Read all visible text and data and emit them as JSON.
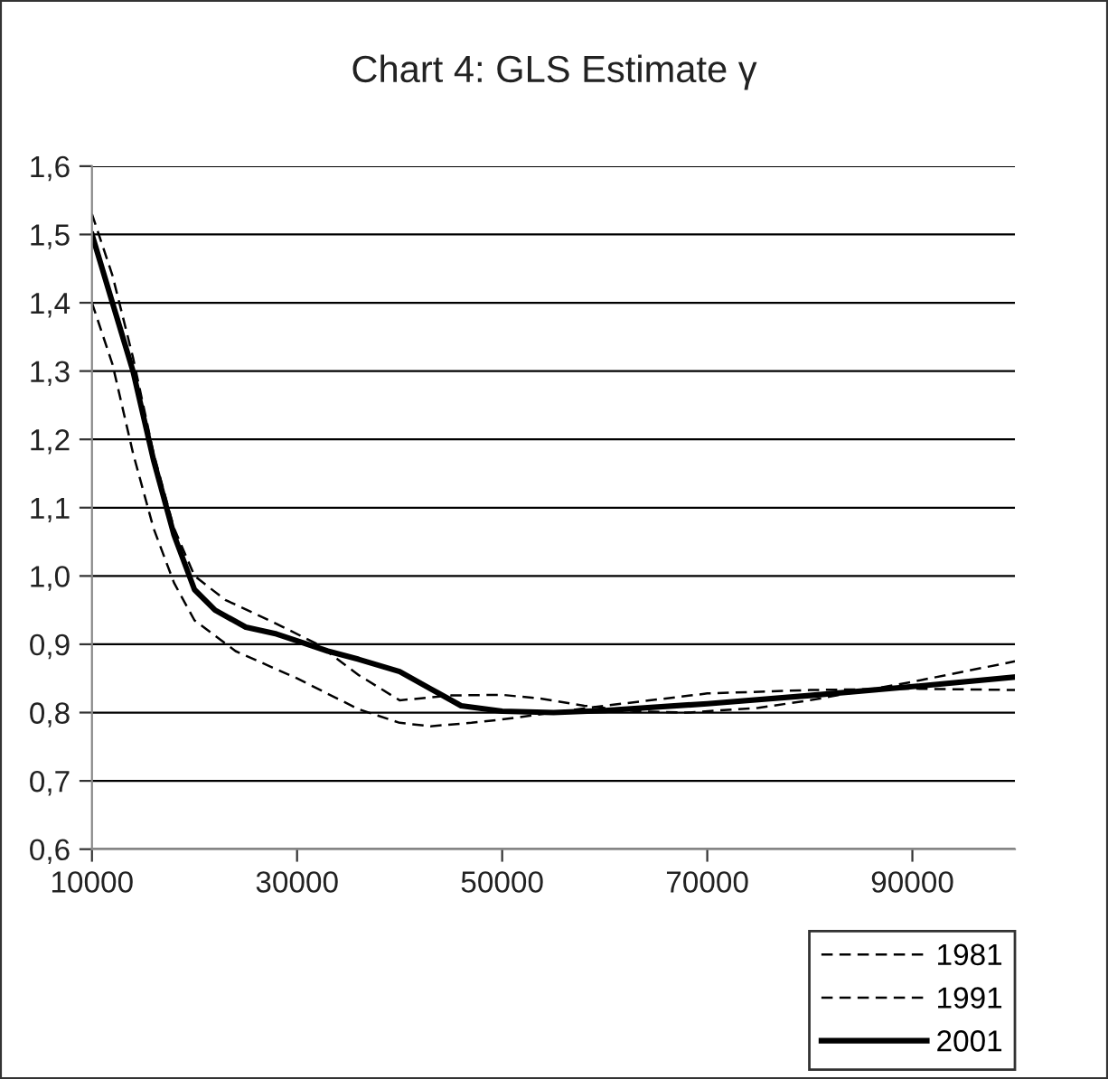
{
  "chart_data": {
    "type": "line",
    "title": "Chart 4: GLS Estimate γ",
    "xlim": [
      10000,
      100000
    ],
    "xticks": [
      10000,
      30000,
      50000,
      70000,
      90000
    ],
    "ylim": [
      0.6,
      1.6
    ],
    "yticks": [
      {
        "value": 0.6,
        "label": "0,6"
      },
      {
        "value": 0.7,
        "label": "0,7"
      },
      {
        "value": 0.8,
        "label": "0,8"
      },
      {
        "value": 0.9,
        "label": "0,9"
      },
      {
        "value": 1.0,
        "label": "1,0"
      },
      {
        "value": 1.1,
        "label": "1,1"
      },
      {
        "value": 1.2,
        "label": "1,2"
      },
      {
        "value": 1.3,
        "label": "1,3"
      },
      {
        "value": 1.4,
        "label": "1,4"
      },
      {
        "value": 1.5,
        "label": "1,5"
      },
      {
        "value": 1.6,
        "label": "1,6"
      }
    ],
    "grid": "y",
    "legend": "bottom right",
    "marker": "none",
    "series": [
      {
        "name": "1981",
        "color": "#000000",
        "line_style": "dashed",
        "x": [
          10000,
          12000,
          14000,
          16000,
          18000,
          20000,
          24000,
          30000,
          36000,
          40000,
          43000,
          47000,
          50000,
          55000,
          60000,
          70000,
          80000,
          90000,
          100000
        ],
        "values": [
          1.4,
          1.31,
          1.18,
          1.07,
          0.99,
          0.935,
          0.89,
          0.85,
          0.805,
          0.785,
          0.78,
          0.785,
          0.79,
          0.8,
          0.81,
          0.828,
          0.833,
          0.835,
          0.833
        ]
      },
      {
        "name": "1991",
        "color": "#000000",
        "line_style": "dashed",
        "x": [
          10000,
          12000,
          14000,
          16000,
          18000,
          20000,
          23000,
          28000,
          32000,
          36000,
          40000,
          45000,
          50000,
          54000,
          58000,
          63000,
          68000,
          75000,
          80000,
          90000,
          100000
        ],
        "values": [
          1.53,
          1.44,
          1.32,
          1.18,
          1.07,
          1.0,
          0.965,
          0.93,
          0.9,
          0.855,
          0.818,
          0.825,
          0.826,
          0.82,
          0.81,
          0.802,
          0.8,
          0.807,
          0.818,
          0.845,
          0.875
        ]
      },
      {
        "name": "2001",
        "color": "#000000",
        "line_style": "solid",
        "x": [
          10000,
          12000,
          14000,
          16000,
          18000,
          20000,
          22000,
          25000,
          28000,
          30000,
          33000,
          36000,
          40000,
          43000,
          46000,
          50000,
          55000,
          60000,
          70000,
          80000,
          90000,
          100000
        ],
        "values": [
          1.5,
          1.4,
          1.3,
          1.17,
          1.06,
          0.98,
          0.95,
          0.925,
          0.915,
          0.905,
          0.89,
          0.878,
          0.86,
          0.835,
          0.81,
          0.802,
          0.8,
          0.803,
          0.813,
          0.825,
          0.838,
          0.852
        ]
      }
    ]
  }
}
